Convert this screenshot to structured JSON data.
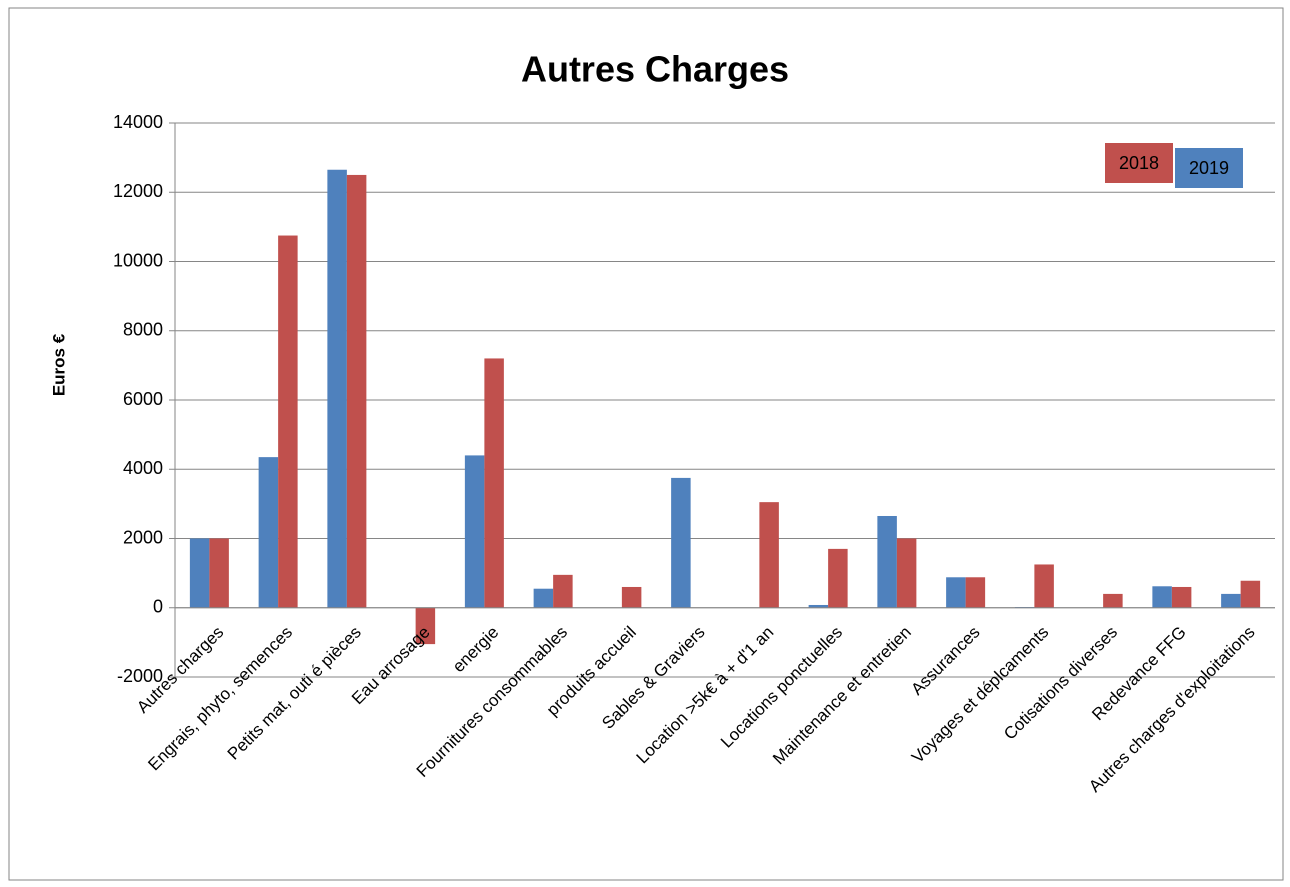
{
  "chart_data": {
    "type": "bar",
    "title": "Autres Charges",
    "y_label": "Euros €",
    "categories": [
      "Autres charges",
      "Engrais, phyto, semences",
      "Petits mat, outi é pièces",
      "Eau arrosage",
      "energie",
      "Fournitures consommables",
      "produits accueil",
      "Sables & Graviers",
      "Location >5k€ à + d'1 an",
      "Locations ponctuelles",
      "Maintenance et entretien",
      "Assurances",
      "Voyages et déplcaments",
      "Cotisations diverses",
      "Redevance FFG",
      "Autres charges d'exploitations"
    ],
    "series": [
      {
        "name": "2019",
        "color": "#4f81bd",
        "values": [
          2000,
          4350,
          12650,
          0,
          4400,
          550,
          0,
          3750,
          0,
          80,
          2650,
          880,
          20,
          0,
          620,
          400
        ]
      },
      {
        "name": "2018",
        "color": "#c0504d",
        "values": [
          2000,
          10750,
          12500,
          -1050,
          7200,
          950,
          600,
          0,
          3050,
          1700,
          2000,
          880,
          1250,
          400,
          600,
          780
        ]
      }
    ],
    "ylim": [
      -2000,
      14000
    ],
    "yticks": [
      -2000,
      0,
      2000,
      4000,
      6000,
      8000,
      10000,
      12000,
      14000
    ],
    "grid": true,
    "legend": "top-right"
  }
}
